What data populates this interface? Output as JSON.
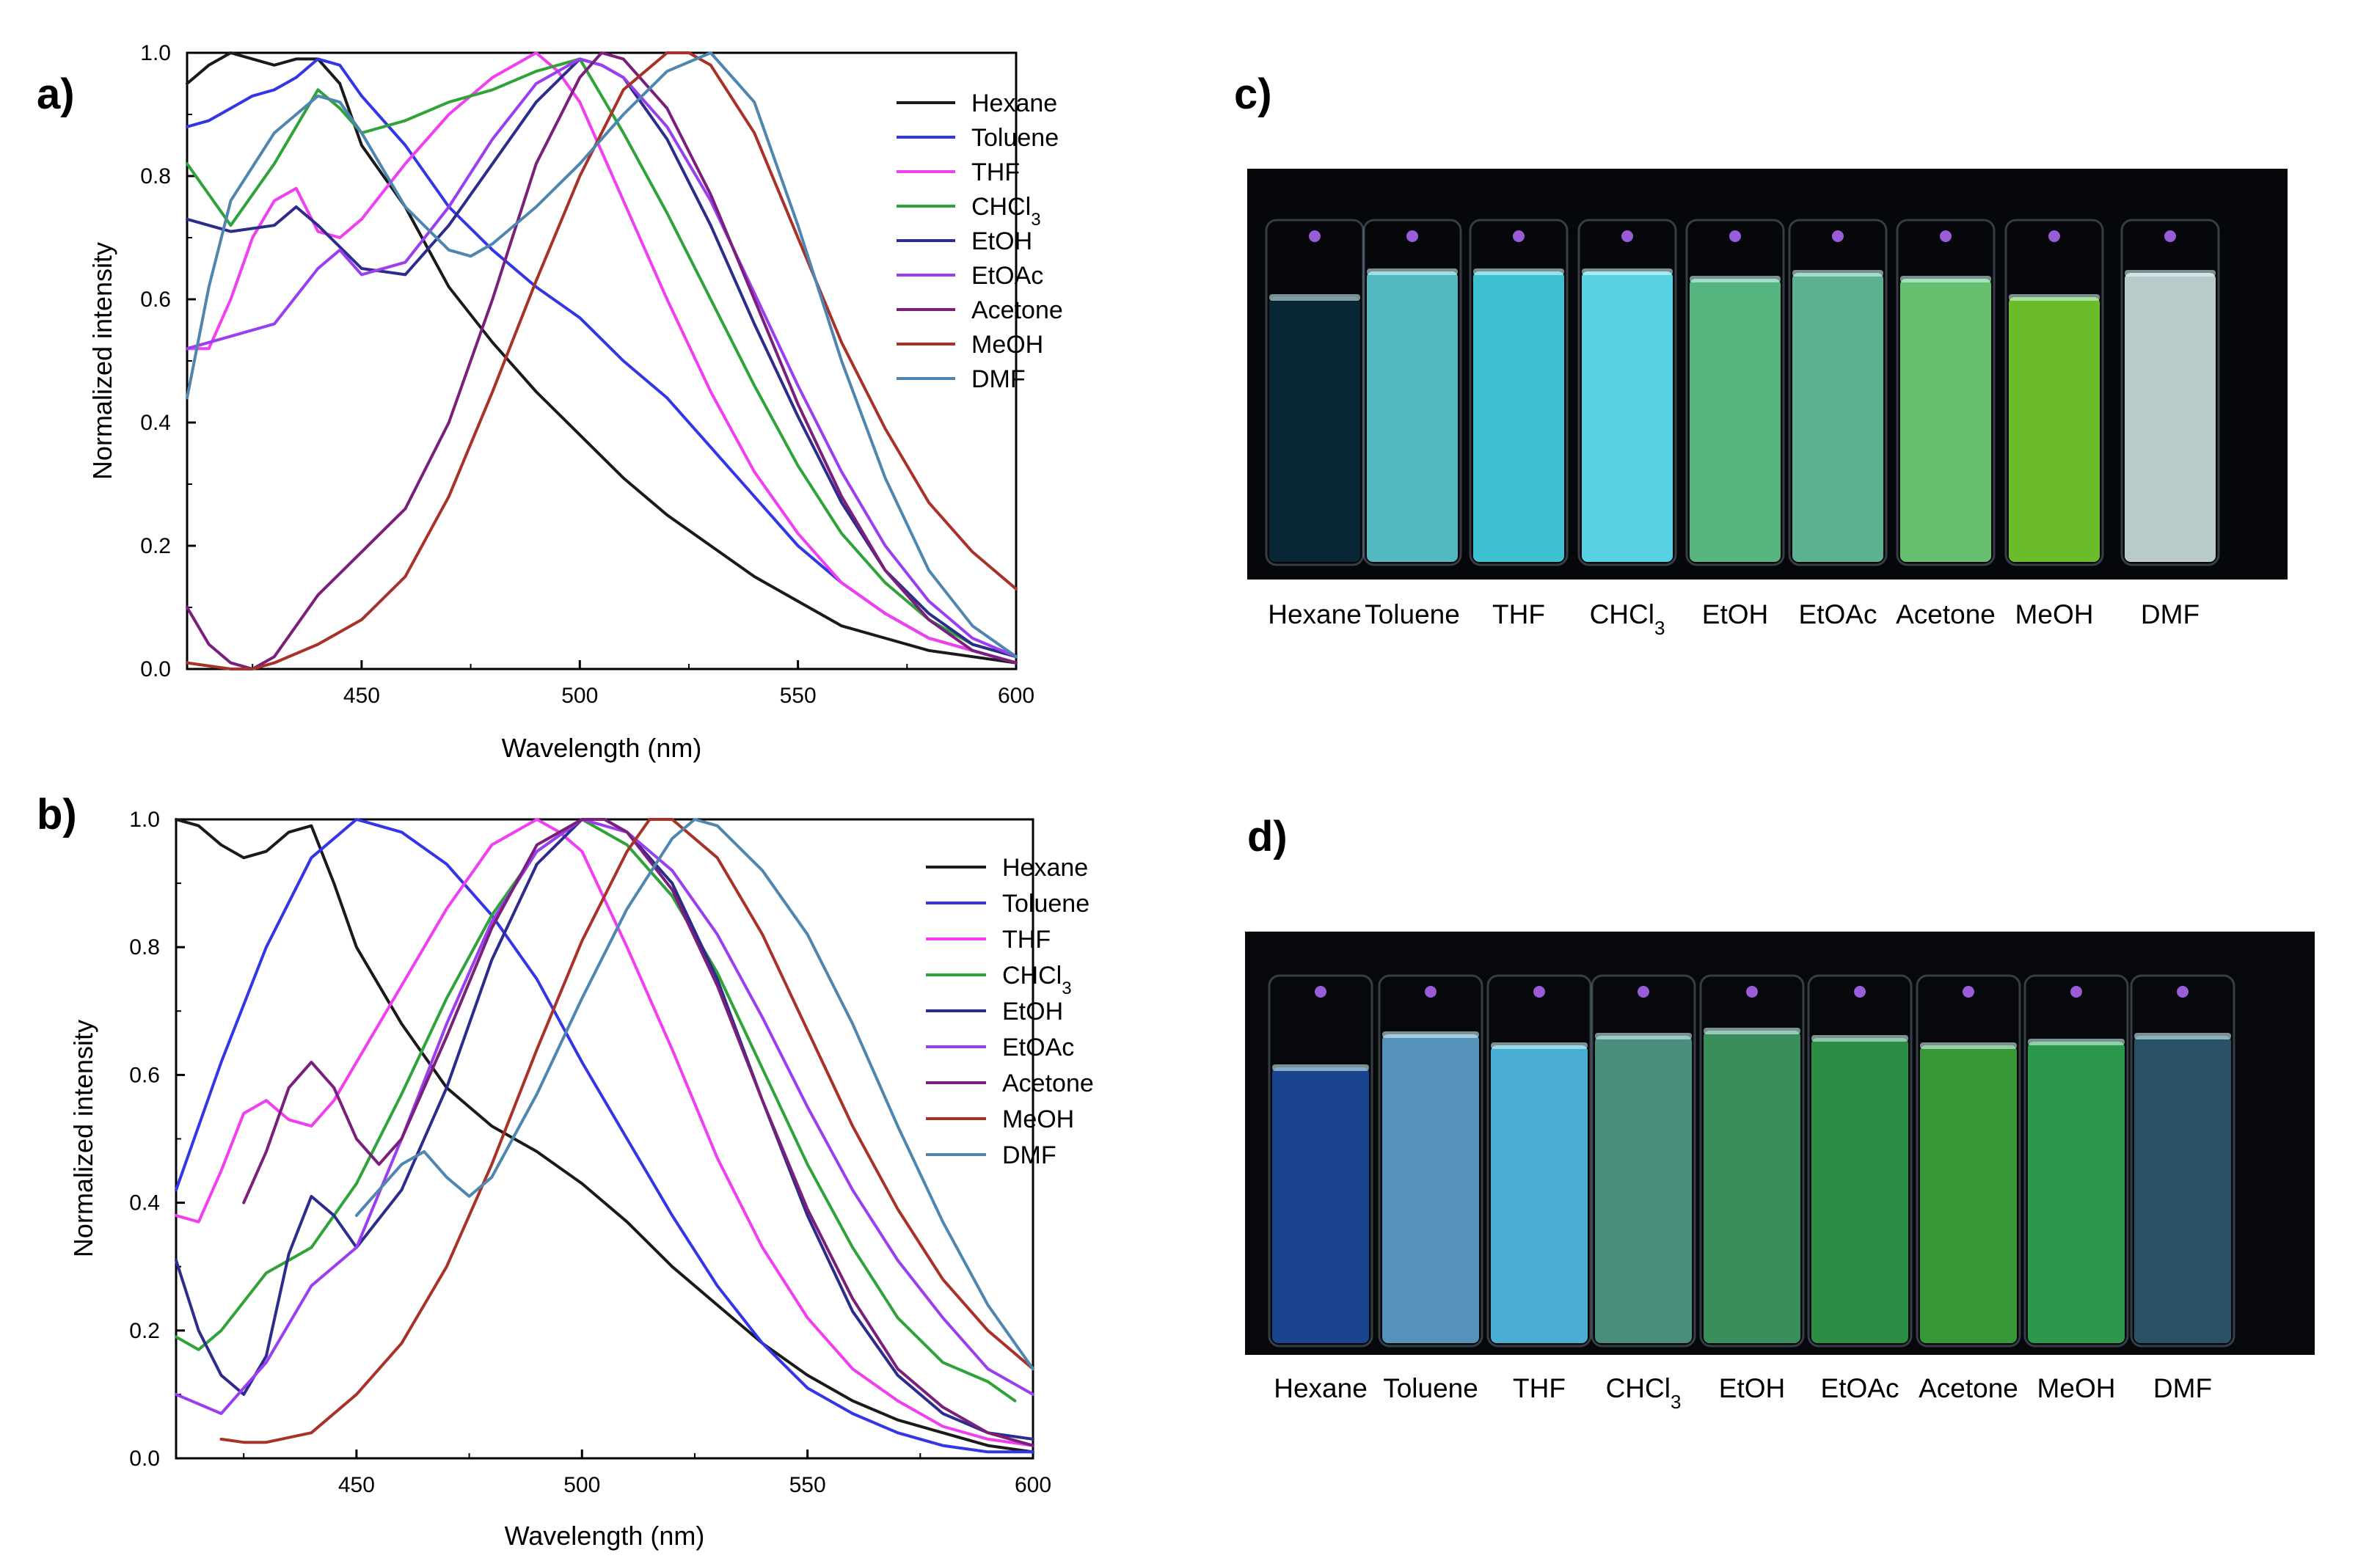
{
  "panels": {
    "a": "a)",
    "b": "b)",
    "c": "c)",
    "d": "d)"
  },
  "colors": {
    "Hexane": "#1a1a1a",
    "Toluene": "#3535e8",
    "THF": "#f03ef0",
    "CHCl3": "#2fa33a",
    "EtOH": "#2c2c8c",
    "EtOAc": "#9b3ef0",
    "Acetone": "#7a1f7a",
    "MeOH": "#a83228",
    "DMF": "#4e86b0"
  },
  "chart_data": [
    {
      "id": "a",
      "type": "line",
      "title": "",
      "xlabel": "Wavelength (nm)",
      "ylabel": "Normalized intensity",
      "xlim": [
        410,
        600
      ],
      "ylim": [
        0.0,
        1.0
      ],
      "xticks": [
        450,
        500,
        550,
        600
      ],
      "yticks": [
        0.0,
        0.2,
        0.4,
        0.6,
        0.8,
        1.0
      ],
      "ytick_labels": [
        "0.0",
        "0.2",
        "0.4",
        "0.6",
        "0.8",
        "1.0"
      ],
      "series": [
        {
          "name": "Hexane",
          "label": "Hexane",
          "x": [
            410,
            415,
            420,
            425,
            430,
            435,
            440,
            445,
            450,
            460,
            470,
            480,
            490,
            500,
            510,
            520,
            530,
            540,
            550,
            560,
            570,
            580,
            590,
            600
          ],
          "y": [
            0.95,
            0.98,
            1.0,
            0.99,
            0.98,
            0.99,
            0.99,
            0.95,
            0.85,
            0.75,
            0.62,
            0.53,
            0.45,
            0.38,
            0.31,
            0.25,
            0.2,
            0.15,
            0.11,
            0.07,
            0.05,
            0.03,
            0.02,
            0.01
          ]
        },
        {
          "name": "Toluene",
          "label": "Toluene",
          "x": [
            410,
            415,
            420,
            425,
            430,
            435,
            440,
            445,
            450,
            460,
            470,
            480,
            490,
            500,
            510,
            520,
            530,
            540,
            550,
            560,
            570,
            580,
            590,
            600
          ],
          "y": [
            0.88,
            0.89,
            0.91,
            0.93,
            0.94,
            0.96,
            0.99,
            0.98,
            0.93,
            0.85,
            0.75,
            0.68,
            0.62,
            0.57,
            0.5,
            0.44,
            0.36,
            0.28,
            0.2,
            0.14,
            0.09,
            0.05,
            0.03,
            0.01
          ]
        },
        {
          "name": "THF",
          "label": "THF",
          "x": [
            410,
            415,
            420,
            425,
            430,
            435,
            440,
            445,
            450,
            460,
            470,
            480,
            490,
            495,
            500,
            510,
            520,
            530,
            540,
            550,
            560,
            570,
            580,
            590,
            600
          ],
          "y": [
            0.52,
            0.52,
            0.6,
            0.7,
            0.76,
            0.78,
            0.71,
            0.7,
            0.73,
            0.82,
            0.9,
            0.96,
            1.0,
            0.97,
            0.92,
            0.76,
            0.6,
            0.45,
            0.32,
            0.22,
            0.14,
            0.09,
            0.05,
            0.03,
            0.01
          ]
        },
        {
          "name": "CHCl3",
          "label": "CHCl",
          "sub": "3",
          "x": [
            410,
            420,
            430,
            440,
            445,
            450,
            460,
            470,
            480,
            490,
            500,
            510,
            520,
            530,
            540,
            550,
            560,
            570,
            580,
            590,
            600
          ],
          "y": [
            0.82,
            0.72,
            0.82,
            0.94,
            0.91,
            0.87,
            0.89,
            0.92,
            0.94,
            0.97,
            0.99,
            0.87,
            0.74,
            0.6,
            0.46,
            0.33,
            0.22,
            0.14,
            0.08,
            0.04,
            0.02
          ]
        },
        {
          "name": "EtOH",
          "label": "EtOH",
          "x": [
            410,
            420,
            430,
            435,
            440,
            450,
            460,
            470,
            480,
            490,
            500,
            505,
            510,
            520,
            530,
            540,
            550,
            560,
            570,
            580,
            590,
            600
          ],
          "y": [
            0.73,
            0.71,
            0.72,
            0.75,
            0.72,
            0.65,
            0.64,
            0.72,
            0.82,
            0.92,
            0.99,
            0.98,
            0.96,
            0.86,
            0.72,
            0.56,
            0.41,
            0.27,
            0.16,
            0.09,
            0.04,
            0.02
          ]
        },
        {
          "name": "EtOAc",
          "label": "EtOAc",
          "x": [
            410,
            420,
            430,
            440,
            445,
            450,
            460,
            470,
            480,
            490,
            500,
            505,
            510,
            520,
            530,
            540,
            550,
            560,
            570,
            580,
            590,
            600
          ],
          "y": [
            0.52,
            0.54,
            0.56,
            0.65,
            0.68,
            0.64,
            0.66,
            0.75,
            0.86,
            0.95,
            0.99,
            0.98,
            0.96,
            0.88,
            0.76,
            0.61,
            0.46,
            0.32,
            0.2,
            0.11,
            0.05,
            0.02
          ]
        },
        {
          "name": "Acetone",
          "label": "Acetone",
          "x": [
            410,
            415,
            420,
            425,
            430,
            440,
            450,
            460,
            470,
            480,
            490,
            500,
            505,
            510,
            520,
            530,
            540,
            550,
            560,
            570,
            580,
            590,
            600
          ],
          "y": [
            0.1,
            0.04,
            0.01,
            0.0,
            0.02,
            0.12,
            0.19,
            0.26,
            0.4,
            0.6,
            0.82,
            0.96,
            1.0,
            0.99,
            0.91,
            0.77,
            0.6,
            0.43,
            0.28,
            0.16,
            0.08,
            0.03,
            0.01
          ]
        },
        {
          "name": "MeOH",
          "label": "MeOH",
          "x": [
            410,
            420,
            425,
            430,
            440,
            450,
            460,
            470,
            480,
            490,
            500,
            510,
            520,
            525,
            530,
            540,
            550,
            560,
            570,
            580,
            590,
            600
          ],
          "y": [
            0.01,
            0.0,
            0.0,
            0.01,
            0.04,
            0.08,
            0.15,
            0.28,
            0.45,
            0.63,
            0.8,
            0.94,
            1.0,
            1.0,
            0.98,
            0.87,
            0.7,
            0.53,
            0.39,
            0.27,
            0.19,
            0.13
          ]
        },
        {
          "name": "DMF",
          "label": "DMF",
          "x": [
            410,
            415,
            420,
            430,
            440,
            445,
            450,
            460,
            470,
            475,
            480,
            490,
            500,
            510,
            520,
            530,
            540,
            550,
            560,
            570,
            580,
            590,
            600
          ],
          "y": [
            0.44,
            0.62,
            0.76,
            0.87,
            0.93,
            0.92,
            0.87,
            0.75,
            0.68,
            0.67,
            0.69,
            0.75,
            0.82,
            0.9,
            0.97,
            1.0,
            0.92,
            0.72,
            0.5,
            0.31,
            0.16,
            0.07,
            0.02
          ]
        }
      ]
    },
    {
      "id": "b",
      "type": "line",
      "title": "",
      "xlabel": "Wavelength (nm)",
      "ylabel": "Normalized intensity",
      "xlim": [
        410,
        600
      ],
      "ylim": [
        0.0,
        1.0
      ],
      "xticks": [
        450,
        500,
        550,
        600
      ],
      "yticks": [
        0.0,
        0.2,
        0.4,
        0.6,
        0.8,
        1.0
      ],
      "ytick_labels": [
        "0.0",
        "0.2",
        "0.4",
        "0.6",
        "0.8",
        "1.0"
      ],
      "series": [
        {
          "name": "Hexane",
          "label": "Hexane",
          "x": [
            410,
            415,
            420,
            425,
            430,
            435,
            440,
            445,
            450,
            460,
            470,
            480,
            490,
            500,
            510,
            520,
            530,
            540,
            550,
            560,
            570,
            580,
            590,
            600
          ],
          "y": [
            1.0,
            0.99,
            0.96,
            0.94,
            0.95,
            0.98,
            0.99,
            0.9,
            0.8,
            0.68,
            0.58,
            0.52,
            0.48,
            0.43,
            0.37,
            0.3,
            0.24,
            0.18,
            0.13,
            0.09,
            0.06,
            0.04,
            0.02,
            0.01
          ]
        },
        {
          "name": "Toluene",
          "label": "Toluene",
          "x": [
            410,
            420,
            430,
            440,
            450,
            460,
            470,
            480,
            490,
            500,
            510,
            520,
            530,
            540,
            550,
            560,
            570,
            580,
            590,
            600
          ],
          "y": [
            0.42,
            0.62,
            0.8,
            0.94,
            1.0,
            0.98,
            0.93,
            0.85,
            0.75,
            0.62,
            0.5,
            0.38,
            0.27,
            0.18,
            0.11,
            0.07,
            0.04,
            0.02,
            0.01,
            0.01
          ]
        },
        {
          "name": "THF",
          "label": "THF",
          "x": [
            410,
            415,
            420,
            425,
            430,
            435,
            440,
            445,
            450,
            460,
            470,
            480,
            490,
            495,
            500,
            510,
            520,
            530,
            540,
            550,
            560,
            570,
            580,
            590,
            600
          ],
          "y": [
            0.38,
            0.37,
            0.45,
            0.54,
            0.56,
            0.53,
            0.52,
            0.56,
            0.62,
            0.74,
            0.86,
            0.96,
            1.0,
            0.98,
            0.95,
            0.8,
            0.64,
            0.47,
            0.33,
            0.22,
            0.14,
            0.09,
            0.05,
            0.03,
            0.02
          ]
        },
        {
          "name": "CHCl3",
          "label": "CHCl",
          "sub": "3",
          "x": [
            410,
            415,
            420,
            430,
            440,
            450,
            460,
            470,
            480,
            490,
            500,
            510,
            520,
            530,
            540,
            550,
            560,
            570,
            580,
            590,
            596
          ],
          "y": [
            0.19,
            0.17,
            0.2,
            0.29,
            0.33,
            0.43,
            0.57,
            0.72,
            0.85,
            0.95,
            1.0,
            0.96,
            0.88,
            0.76,
            0.61,
            0.46,
            0.33,
            0.22,
            0.15,
            0.12,
            0.09
          ]
        },
        {
          "name": "EtOH",
          "label": "EtOH",
          "x": [
            410,
            415,
            420,
            425,
            430,
            435,
            440,
            445,
            450,
            460,
            470,
            480,
            490,
            500,
            505,
            510,
            520,
            530,
            540,
            550,
            560,
            570,
            580,
            590,
            600
          ],
          "y": [
            0.31,
            0.2,
            0.13,
            0.1,
            0.16,
            0.32,
            0.41,
            0.38,
            0.33,
            0.42,
            0.58,
            0.78,
            0.93,
            1.0,
            1.0,
            0.98,
            0.9,
            0.75,
            0.56,
            0.38,
            0.23,
            0.13,
            0.07,
            0.04,
            0.03
          ]
        },
        {
          "name": "EtOAc",
          "label": "EtOAc",
          "x": [
            410,
            420,
            430,
            440,
            450,
            460,
            470,
            480,
            490,
            500,
            510,
            520,
            530,
            540,
            550,
            560,
            570,
            580,
            590,
            600
          ],
          "y": [
            0.1,
            0.07,
            0.15,
            0.27,
            0.33,
            0.5,
            0.68,
            0.84,
            0.95,
            1.0,
            0.98,
            0.92,
            0.82,
            0.69,
            0.55,
            0.42,
            0.31,
            0.22,
            0.14,
            0.1
          ]
        },
        {
          "name": "Acetone",
          "label": "Acetone",
          "x": [
            425,
            430,
            435,
            440,
            445,
            450,
            455,
            460,
            470,
            480,
            490,
            500,
            505,
            510,
            520,
            530,
            540,
            550,
            560,
            570,
            580,
            590,
            600
          ],
          "y": [
            0.4,
            0.48,
            0.58,
            0.62,
            0.58,
            0.5,
            0.46,
            0.5,
            0.66,
            0.83,
            0.96,
            1.0,
            1.0,
            0.98,
            0.89,
            0.74,
            0.56,
            0.39,
            0.25,
            0.14,
            0.08,
            0.04,
            0.02
          ]
        },
        {
          "name": "MeOH",
          "label": "MeOH",
          "x": [
            420,
            425,
            430,
            440,
            450,
            460,
            470,
            480,
            490,
            500,
            510,
            515,
            520,
            530,
            540,
            550,
            560,
            570,
            580,
            590,
            600
          ],
          "y": [
            0.03,
            0.025,
            0.025,
            0.04,
            0.1,
            0.18,
            0.3,
            0.46,
            0.64,
            0.81,
            0.95,
            1.0,
            1.0,
            0.94,
            0.82,
            0.67,
            0.52,
            0.39,
            0.28,
            0.2,
            0.14
          ]
        },
        {
          "name": "DMF",
          "label": "DMF",
          "x": [
            450,
            455,
            460,
            465,
            470,
            475,
            480,
            490,
            500,
            510,
            520,
            525,
            530,
            540,
            550,
            560,
            570,
            580,
            590,
            600
          ],
          "y": [
            0.38,
            0.42,
            0.46,
            0.48,
            0.44,
            0.41,
            0.44,
            0.57,
            0.72,
            0.86,
            0.97,
            1.0,
            0.99,
            0.92,
            0.82,
            0.68,
            0.52,
            0.37,
            0.24,
            0.14
          ]
        }
      ]
    }
  ],
  "photos": {
    "c": {
      "labels": [
        "Hexane",
        "Toluene",
        "THF",
        "CHCl",
        "EtOH",
        "EtOAc",
        "Acetone",
        "MeOH",
        "DMF"
      ],
      "label_sub": "3",
      "fill_colors": [
        "#0b2a3a",
        "#58c9cf",
        "#43d3e4",
        "#5fe4f5",
        "#5ec48a",
        "#63c09c",
        "#6fd07a",
        "#74cc2e",
        "#c9dbdb"
      ]
    },
    "d": {
      "labels": [
        "Hexane",
        "Toluene",
        "THF",
        "CHCl",
        "EtOH",
        "EtOAc",
        "Acetone",
        "MeOH",
        "DMF"
      ],
      "label_sub": "3",
      "fill_colors": [
        "#1c4a9a",
        "#5c9dc9",
        "#4fbde3",
        "#4f9a88",
        "#3f9a64",
        "#2f9a4a",
        "#3da53c",
        "#2fa552",
        "#2c5a6d"
      ]
    }
  }
}
